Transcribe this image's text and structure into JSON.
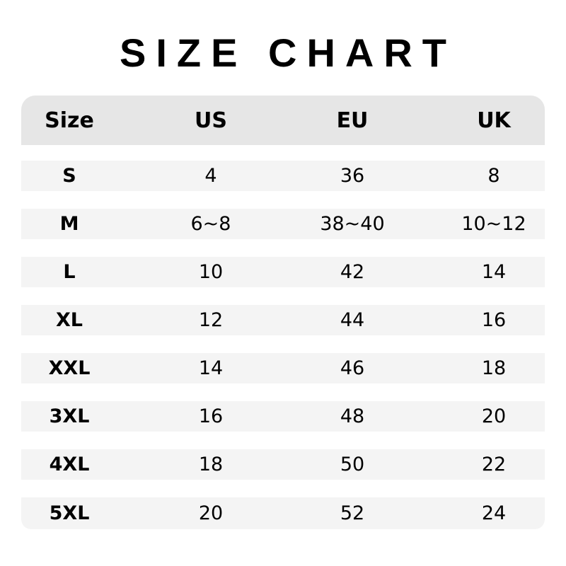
{
  "title": "SIZE CHART",
  "table": {
    "headers": [
      "Size",
      "US",
      "EU",
      "UK"
    ],
    "rows": [
      [
        "S",
        "4",
        "36",
        "8"
      ],
      [
        "M",
        "6~8",
        "38~40",
        "10~12"
      ],
      [
        "L",
        "10",
        "42",
        "14"
      ],
      [
        "XL",
        "12",
        "44",
        "16"
      ],
      [
        "XXL",
        "14",
        "46",
        "18"
      ],
      [
        "3XL",
        "16",
        "48",
        "20"
      ],
      [
        "4XL",
        "18",
        "50",
        "22"
      ],
      [
        "5XL",
        "20",
        "52",
        "24"
      ]
    ]
  },
  "colors": {
    "header_bg": "#e6e6e6",
    "row_bg": "#f4f4f4",
    "text": "#000000"
  }
}
